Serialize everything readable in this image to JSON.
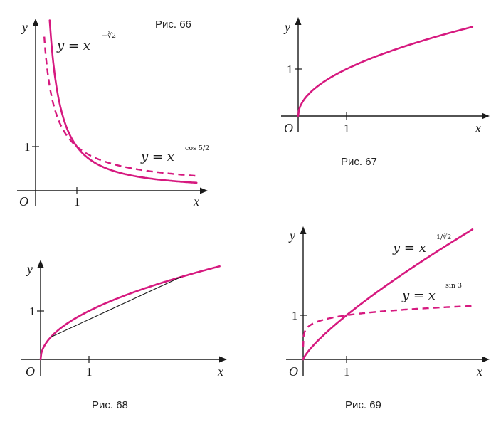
{
  "figures": [
    {
      "caption": "Рис. 66",
      "axis_labels": {
        "x": "x",
        "y": "y",
        "origin": "O",
        "one_x": "1",
        "one_y": "1"
      },
      "curves": [
        {
          "equation_lhs": "y = x",
          "exponent": "−∛2",
          "exponent_value": -1.26,
          "style": "solid"
        },
        {
          "equation_lhs": "y = x",
          "exponent": "cos 5/2",
          "exponent_value": -0.801,
          "style": "dashed"
        }
      ]
    },
    {
      "caption": "Рис. 67",
      "axis_labels": {
        "x": "x",
        "y": "y",
        "origin": "O",
        "one_x": "1",
        "one_y": "1"
      },
      "curves": [
        {
          "exponent_value": 0.5,
          "style": "solid"
        }
      ]
    },
    {
      "caption": "Рис. 68",
      "axis_labels": {
        "x": "x",
        "y": "y",
        "origin": "O",
        "one_x": "1",
        "one_y": "1"
      },
      "curves": [
        {
          "exponent_value": 0.5,
          "style": "solid",
          "with_chord": true
        }
      ]
    },
    {
      "caption": "Рис. 69",
      "axis_labels": {
        "x": "x",
        "y": "y",
        "origin": "O",
        "one_x": "1",
        "one_y": "1"
      },
      "curves": [
        {
          "equation_lhs": "y = x",
          "exponent": "1/∛2",
          "exponent_value": 0.794,
          "style": "solid"
        },
        {
          "equation_lhs": "y = x",
          "exponent": "sin 3",
          "exponent_value": 0.1411,
          "style": "dashed"
        }
      ]
    }
  ],
  "colors": {
    "curve": "#d6197f",
    "axis": "#1a1a1a"
  }
}
